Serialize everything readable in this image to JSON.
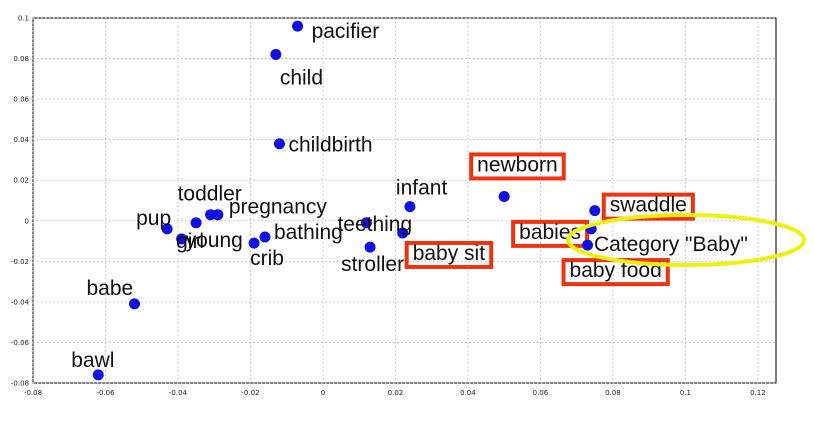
{
  "chart_data": {
    "type": "scatter",
    "xlim": [
      -0.08,
      0.125
    ],
    "ylim": [
      -0.08,
      0.1
    ],
    "xticks": [
      "-0.08",
      "-0.06",
      "-0.04",
      "-0.02",
      "0",
      "0.02",
      "0.04",
      "0.06",
      "0.08",
      "0.1",
      "0.12"
    ],
    "xtick_values": [
      -0.08,
      -0.06,
      -0.04,
      -0.02,
      0,
      0.02,
      0.04,
      0.06,
      0.08,
      0.1,
      0.12
    ],
    "yticks": [
      "0.1",
      "0.08",
      "0.06",
      "0.04",
      "0.02",
      "0",
      "-0.02",
      "-0.04",
      "-0.06",
      "-0.08"
    ],
    "ytick_values": [
      0.1,
      0.08,
      0.06,
      0.04,
      0.02,
      0,
      -0.02,
      -0.04,
      -0.06,
      -0.08
    ],
    "grid": true,
    "point_color": "#1010e0",
    "highlight_color": "#ee3311",
    "category_color": "#f0f010",
    "points": [
      {
        "label": "pacifier",
        "x": -0.007,
        "y": 0.096
      },
      {
        "label": "child",
        "x": -0.013,
        "y": 0.082
      },
      {
        "label": "childbirth",
        "x": -0.012,
        "y": 0.038
      },
      {
        "label": "toddler",
        "x": -0.031,
        "y": 0.003
      },
      {
        "label": "pup",
        "x": -0.043,
        "y": -0.004
      },
      {
        "label": "pregnancy",
        "x": -0.029,
        "y": 0.003
      },
      {
        "label": "young",
        "x": -0.039,
        "y": -0.009
      },
      {
        "label": "girl",
        "x": -0.035,
        "y": -0.001
      },
      {
        "label": "bathing",
        "x": -0.016,
        "y": -0.008
      },
      {
        "label": "crib",
        "x": -0.019,
        "y": -0.011
      },
      {
        "label": "infant",
        "x": 0.024,
        "y": 0.007
      },
      {
        "label": "teething",
        "x": 0.012,
        "y": -0.001
      },
      {
        "label": "stroller",
        "x": 0.013,
        "y": -0.013
      },
      {
        "label": "babe",
        "x": -0.052,
        "y": -0.041
      },
      {
        "label": "bawl",
        "x": -0.062,
        "y": -0.076
      },
      {
        "label": "newborn",
        "x": 0.05,
        "y": 0.012
      },
      {
        "label": "swaddle",
        "x": 0.075,
        "y": 0.005
      },
      {
        "label": "babies",
        "x": 0.074,
        "y": -0.004
      },
      {
        "label": "baby sit",
        "x": 0.022,
        "y": -0.006
      },
      {
        "label": "baby food",
        "x": 0.073,
        "y": -0.012
      }
    ],
    "highlighted": [
      "newborn",
      "swaddle",
      "babies",
      "baby sit",
      "baby food"
    ],
    "annotation": "Category \"Baby\""
  }
}
